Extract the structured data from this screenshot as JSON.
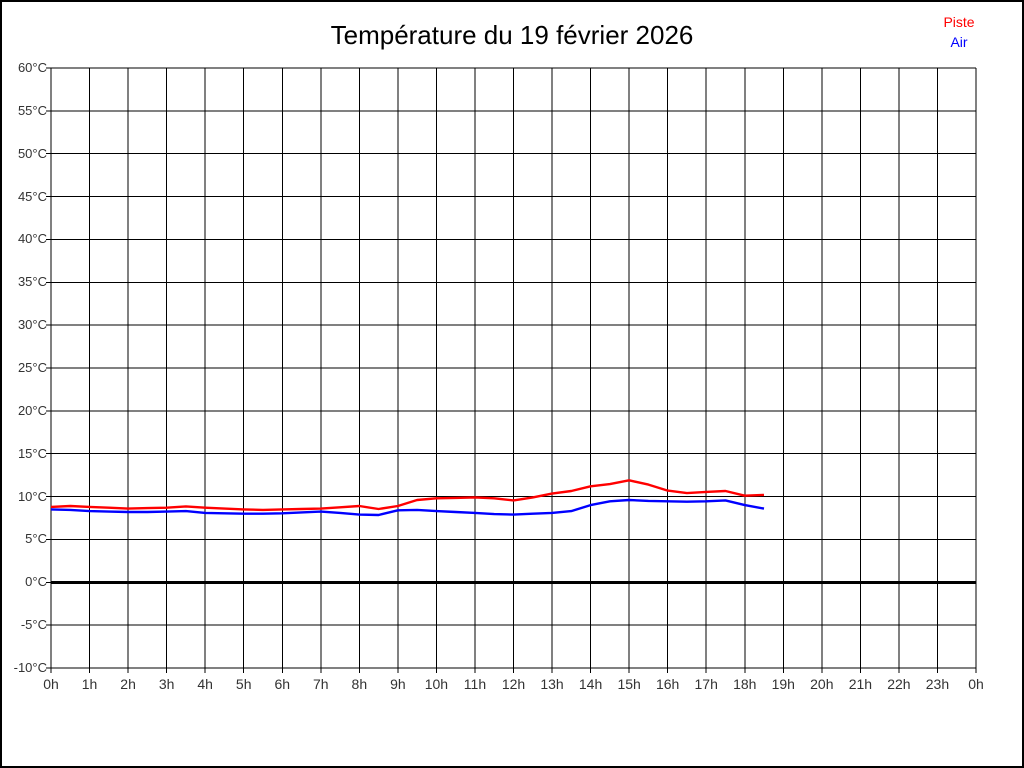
{
  "window": {
    "background": "#ffffff",
    "border_color": "#000000"
  },
  "chart_data": {
    "type": "line",
    "title": "Température du 19 février 2026",
    "xlabel": "",
    "ylabel": "",
    "xlim": [
      0,
      24
    ],
    "ylim": [
      -10,
      60
    ],
    "grid": true,
    "grid_color": "#000000",
    "legend_position": "top-right",
    "x_tick_labels": [
      "0h",
      "1h",
      "2h",
      "3h",
      "4h",
      "5h",
      "6h",
      "7h",
      "8h",
      "9h",
      "10h",
      "11h",
      "12h",
      "13h",
      "14h",
      "15h",
      "16h",
      "17h",
      "18h",
      "19h",
      "20h",
      "21h",
      "22h",
      "23h",
      "0h"
    ],
    "y_ticks": [
      60,
      55,
      50,
      45,
      40,
      35,
      30,
      25,
      20,
      15,
      10,
      5,
      0,
      -5,
      -10
    ],
    "y_tick_labels": [
      "60°C",
      "55°C",
      "50°C",
      "45°C",
      "40°C",
      "35°C",
      "30°C",
      "25°C",
      "20°C",
      "15°C",
      "10°C",
      "5°C",
      "0°C",
      "-5°C",
      "-10°C"
    ],
    "zero_line": {
      "value": 0,
      "color": "#000000",
      "width": 3
    },
    "x": [
      0,
      0.5,
      1,
      1.5,
      2,
      2.5,
      3,
      3.5,
      4,
      4.5,
      5,
      5.5,
      6,
      6.5,
      7,
      7.5,
      8,
      8.5,
      9,
      9.5,
      10,
      10.5,
      11,
      11.5,
      12,
      12.5,
      13,
      13.5,
      14,
      14.5,
      15,
      15.5,
      16,
      16.5,
      17,
      17.5,
      18,
      18.5
    ],
    "series": [
      {
        "name": "Piste",
        "color": "#ff0000",
        "width": 2.4,
        "values": [
          8.8,
          8.9,
          8.8,
          8.7,
          8.6,
          8.65,
          8.7,
          8.85,
          8.7,
          8.6,
          8.5,
          8.45,
          8.5,
          8.55,
          8.6,
          8.75,
          8.9,
          8.55,
          8.9,
          9.6,
          9.8,
          9.85,
          9.9,
          9.8,
          9.55,
          9.9,
          10.35,
          10.65,
          11.2,
          11.45,
          11.9,
          11.4,
          10.7,
          10.4,
          10.55,
          10.65,
          10.1,
          10.2
        ]
      },
      {
        "name": "Air",
        "color": "#0000ff",
        "width": 2.4,
        "values": [
          8.5,
          8.45,
          8.3,
          8.25,
          8.2,
          8.2,
          8.25,
          8.3,
          8.1,
          8.05,
          8.0,
          8.0,
          8.05,
          8.15,
          8.25,
          8.1,
          7.9,
          7.85,
          8.4,
          8.45,
          8.3,
          8.2,
          8.1,
          7.95,
          7.9,
          8.0,
          8.1,
          8.3,
          9.0,
          9.45,
          9.6,
          9.5,
          9.45,
          9.4,
          9.45,
          9.55,
          9.0,
          8.6
        ]
      }
    ]
  }
}
